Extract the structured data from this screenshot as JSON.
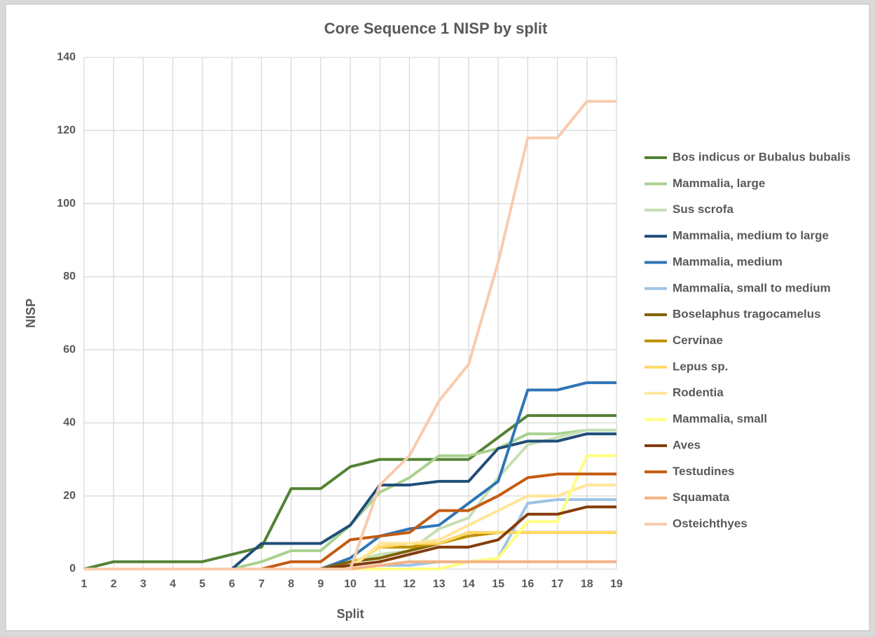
{
  "chart_data": {
    "type": "line",
    "title": "Core Sequence 1 NISP by split",
    "x_label": "Split",
    "y_label": "NISP",
    "x": [
      1,
      2,
      3,
      4,
      5,
      6,
      7,
      8,
      9,
      10,
      11,
      12,
      13,
      14,
      15,
      16,
      17,
      18,
      19
    ],
    "xlim": [
      1,
      19
    ],
    "xticks": [
      1,
      2,
      3,
      4,
      5,
      6,
      7,
      8,
      9,
      10,
      11,
      12,
      13,
      14,
      15,
      16,
      17,
      18,
      19
    ],
    "ylim": [
      0,
      140
    ],
    "yticks": [
      0,
      20,
      40,
      60,
      80,
      100,
      120,
      140
    ],
    "grid": true,
    "legend": "right",
    "series": [
      {
        "name": "Bos indicus or Bubalus bubalis",
        "color": "#548235",
        "values": [
          0,
          2,
          2,
          2,
          2,
          4,
          6,
          22,
          22,
          28,
          30,
          30,
          30,
          30,
          36,
          42,
          42,
          42,
          42
        ]
      },
      {
        "name": "Mammalia, large",
        "color": "#a9d18e",
        "values": [
          0,
          0,
          0,
          0,
          0,
          0,
          2,
          5,
          5,
          12,
          21,
          25,
          31,
          31,
          33,
          37,
          37,
          38,
          38
        ]
      },
      {
        "name": "Sus scrofa",
        "color": "#c5e0b4",
        "values": [
          0,
          0,
          0,
          0,
          0,
          0,
          0,
          0,
          0,
          2,
          4,
          5,
          11,
          14,
          25,
          34,
          36,
          38,
          38
        ]
      },
      {
        "name": "Mammalia, medium to large",
        "color": "#1f4e79",
        "values": [
          0,
          0,
          0,
          0,
          0,
          0,
          7,
          7,
          7,
          12,
          23,
          23,
          24,
          24,
          33,
          35,
          35,
          37,
          37
        ]
      },
      {
        "name": "Mammalia, medium",
        "color": "#2e75b6",
        "values": [
          0,
          0,
          0,
          0,
          0,
          0,
          0,
          0,
          0,
          3,
          9,
          11,
          12,
          18,
          24,
          49,
          49,
          51,
          51
        ]
      },
      {
        "name": "Mammalia, small to medium",
        "color": "#9dc3e6",
        "values": [
          0,
          0,
          0,
          0,
          0,
          0,
          0,
          0,
          0,
          0,
          1,
          1,
          2,
          2,
          3,
          18,
          19,
          19,
          19
        ]
      },
      {
        "name": "Boselaphus tragocamelus",
        "color": "#7f6000",
        "values": [
          0,
          0,
          0,
          0,
          0,
          0,
          0,
          0,
          0,
          2,
          3,
          5,
          7,
          10,
          10,
          10,
          10,
          10,
          10
        ]
      },
      {
        "name": "Cervinae",
        "color": "#bf9000",
        "values": [
          0,
          0,
          0,
          0,
          0,
          0,
          0,
          0,
          0,
          1,
          6,
          6,
          7,
          9,
          10,
          10,
          10,
          10,
          10
        ]
      },
      {
        "name": "Lepus sp.",
        "color": "#ffd966",
        "values": [
          0,
          0,
          0,
          0,
          0,
          0,
          0,
          0,
          0,
          1,
          6,
          7,
          7,
          10,
          10,
          10,
          10,
          10,
          10
        ]
      },
      {
        "name": "Rodentia",
        "color": "#ffe699",
        "values": [
          0,
          0,
          0,
          0,
          0,
          0,
          0,
          0,
          0,
          0,
          7,
          7,
          8,
          12,
          16,
          20,
          20,
          23,
          23
        ]
      },
      {
        "name": "Mammalia, small",
        "color": "#ffff80",
        "values": [
          0,
          0,
          0,
          0,
          0,
          0,
          0,
          0,
          0,
          0,
          0,
          0,
          0,
          2,
          3,
          13,
          13,
          31,
          31
        ]
      },
      {
        "name": "Aves",
        "color": "#843c0c",
        "values": [
          0,
          0,
          0,
          0,
          0,
          0,
          0,
          0,
          0,
          1,
          2,
          4,
          6,
          6,
          8,
          15,
          15,
          17,
          17
        ]
      },
      {
        "name": "Testudines",
        "color": "#c55a11",
        "values": [
          0,
          0,
          0,
          0,
          0,
          0,
          0,
          2,
          2,
          8,
          9,
          10,
          16,
          16,
          20,
          25,
          26,
          26,
          26
        ]
      },
      {
        "name": "Squamata",
        "color": "#f4b183",
        "values": [
          0,
          0,
          0,
          0,
          0,
          0,
          0,
          0,
          0,
          0,
          1,
          2,
          2,
          2,
          2,
          2,
          2,
          2,
          2
        ]
      },
      {
        "name": "Osteichthyes",
        "color": "#f8cbad",
        "values": [
          0,
          0,
          0,
          0,
          0,
          0,
          0,
          0,
          0,
          0,
          23,
          31,
          46,
          56,
          84,
          118,
          118,
          128,
          128
        ]
      }
    ]
  }
}
